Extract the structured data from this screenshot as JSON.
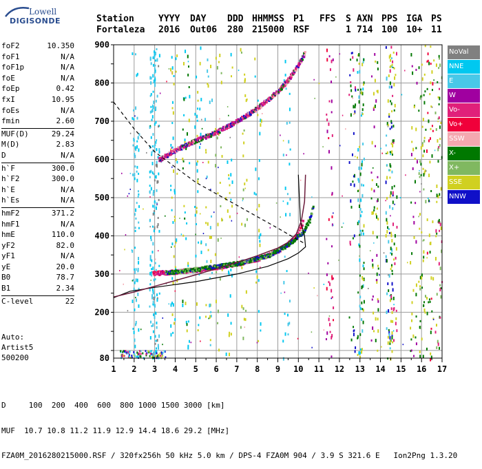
{
  "logo": {
    "line1": "Lowell",
    "line2": "DIGISONDE"
  },
  "header": {
    "labels": [
      "Station",
      "YYYY",
      "DAY",
      "DDD",
      "HHMMSS",
      "P1",
      "FFS",
      "S",
      "AXN",
      "PPS",
      "IGA",
      "PS"
    ],
    "values": [
      "Fortaleza",
      "2016",
      "Out06",
      "280",
      "215000",
      "RSF",
      "1",
      "714",
      "100",
      "10+",
      "11"
    ]
  },
  "params": [
    {
      "key": "foF2",
      "val": "10.350"
    },
    {
      "key": "foF1",
      "val": "N/A"
    },
    {
      "key": "foF1p",
      "val": "N/A"
    },
    {
      "key": "foE",
      "val": "N/A"
    },
    {
      "key": "foEp",
      "val": "0.42"
    },
    {
      "key": "fxI",
      "val": "10.95"
    },
    {
      "key": "foEs",
      "val": "N/A"
    },
    {
      "key": "fmin",
      "val": "2.60"
    },
    {
      "key": "MUF(D)",
      "val": "29.24"
    },
    {
      "key": "M(D)",
      "val": "2.83"
    },
    {
      "key": "D",
      "val": "N/A"
    },
    {
      "key": "h`F",
      "val": "300.0"
    },
    {
      "key": "h`F2",
      "val": "300.0"
    },
    {
      "key": "h`E",
      "val": "N/A"
    },
    {
      "key": "h`Es",
      "val": "N/A"
    },
    {
      "key": "hmF2",
      "val": "371.2"
    },
    {
      "key": "hmF1",
      "val": "N/A"
    },
    {
      "key": "hmE",
      "val": "110.0"
    },
    {
      "key": "yF2",
      "val": "82.0"
    },
    {
      "key": "yF1",
      "val": "N/A"
    },
    {
      "key": "yE",
      "val": "20.0"
    },
    {
      "key": "B0",
      "val": "78.7"
    },
    {
      "key": "B1",
      "val": "2.34"
    },
    {
      "key": "C-level",
      "val": "22"
    }
  ],
  "auto": {
    "line1": "Auto:",
    "line2": "Artist5",
    "line3": "500200"
  },
  "legend": [
    {
      "label": "NoVal",
      "color": "#808080"
    },
    {
      "label": "NNE",
      "color": "#00c8f0"
    },
    {
      "label": "E",
      "color": "#48c8e8"
    },
    {
      "label": "W",
      "color": "#a000a0"
    },
    {
      "label": "Vo-",
      "color": "#e0207a"
    },
    {
      "label": "Vo+",
      "color": "#f0003a"
    },
    {
      "label": "SSW",
      "color": "#f4a8b0"
    },
    {
      "label": "X-",
      "color": "#007800"
    },
    {
      "label": "X+",
      "color": "#80b860"
    },
    {
      "label": "SSE",
      "color": "#d0d020"
    },
    {
      "label": "NNW",
      "color": "#1010c8"
    }
  ],
  "footer": {
    "line1": "D     100  200  400  600  800 1000 1500 3000 [km]",
    "line2": "MUF  10.7 10.8 11.2 11.9 12.9 14.4 18.6 29.2 [MHz]",
    "line3": "FZA0M_2016280215000.RSF / 320fx256h 50 kHz 5.0 km / DPS-4 FZA0M 904 / 3.9 S 321.6 E   Ion2Png 1.3.20"
  },
  "chart_data": {
    "type": "scatter",
    "x_ticks": [
      "1",
      "2",
      "3",
      "4",
      "5",
      "6",
      "7",
      "8",
      "9",
      "10",
      "11",
      "12",
      "13",
      "14",
      "15",
      "16",
      "17"
    ],
    "y_ticks": [
      "80",
      "200",
      "300",
      "400",
      "500",
      "600",
      "700",
      "800",
      "900"
    ],
    "xlim": [
      1,
      17
    ],
    "ylim": [
      80,
      900
    ],
    "grid": true,
    "ordinary_trace_F2": [
      [
        2.9,
        302
      ],
      [
        3.5,
        304
      ],
      [
        4.0,
        306
      ],
      [
        5.0,
        311
      ],
      [
        6.0,
        318
      ],
      [
        7.0,
        327
      ],
      [
        8.0,
        340
      ],
      [
        8.6,
        352
      ],
      [
        9.0,
        362
      ],
      [
        9.5,
        380
      ],
      [
        9.8,
        395
      ],
      [
        10.0,
        410
      ],
      [
        10.2,
        440
      ]
    ],
    "ordinary_trace_multihop": [
      [
        3.2,
        600
      ],
      [
        4.0,
        625
      ],
      [
        5.0,
        650
      ],
      [
        6.0,
        672
      ],
      [
        7.0,
        700
      ],
      [
        8.0,
        735
      ],
      [
        9.0,
        780
      ],
      [
        9.5,
        810
      ],
      [
        10.0,
        850
      ],
      [
        10.3,
        880
      ]
    ],
    "extraordinary_trace_X": [
      [
        3.5,
        303
      ],
      [
        5.0,
        312
      ],
      [
        7.0,
        328
      ],
      [
        8.5,
        348
      ],
      [
        9.5,
        378
      ],
      [
        10.2,
        410
      ],
      [
        10.5,
        440
      ],
      [
        10.7,
        480
      ]
    ],
    "true_height_profile": [
      [
        1.0,
        238
      ],
      [
        1.8,
        255
      ],
      [
        3.0,
        265
      ],
      [
        5.0,
        280
      ],
      [
        7.0,
        300
      ],
      [
        8.5,
        320
      ],
      [
        9.5,
        340
      ],
      [
        10.0,
        355
      ],
      [
        10.35,
        371
      ],
      [
        10.3,
        400
      ],
      [
        10.1,
        440
      ],
      [
        10.05,
        500
      ],
      [
        10.0,
        560
      ]
    ],
    "virtual_height_model": [
      [
        1.0,
        240
      ],
      [
        2.0,
        253
      ],
      [
        3.0,
        268
      ],
      [
        4.0,
        283
      ],
      [
        5.0,
        298
      ],
      [
        6.0,
        314
      ],
      [
        7.0,
        330
      ],
      [
        8.0,
        348
      ],
      [
        9.0,
        368
      ],
      [
        9.5,
        383
      ],
      [
        9.9,
        405
      ],
      [
        10.15,
        440
      ],
      [
        10.3,
        490
      ],
      [
        10.35,
        560
      ]
    ],
    "dashed_model": [
      [
        1.0,
        750
      ],
      [
        2.0,
        680
      ],
      [
        3.0,
        620
      ],
      [
        4.0,
        580
      ],
      [
        5.0,
        540
      ],
      [
        6.0,
        510
      ],
      [
        7.0,
        480
      ],
      [
        8.0,
        450
      ],
      [
        9.0,
        420
      ],
      [
        9.8,
        395
      ],
      [
        10.3,
        380
      ]
    ]
  }
}
